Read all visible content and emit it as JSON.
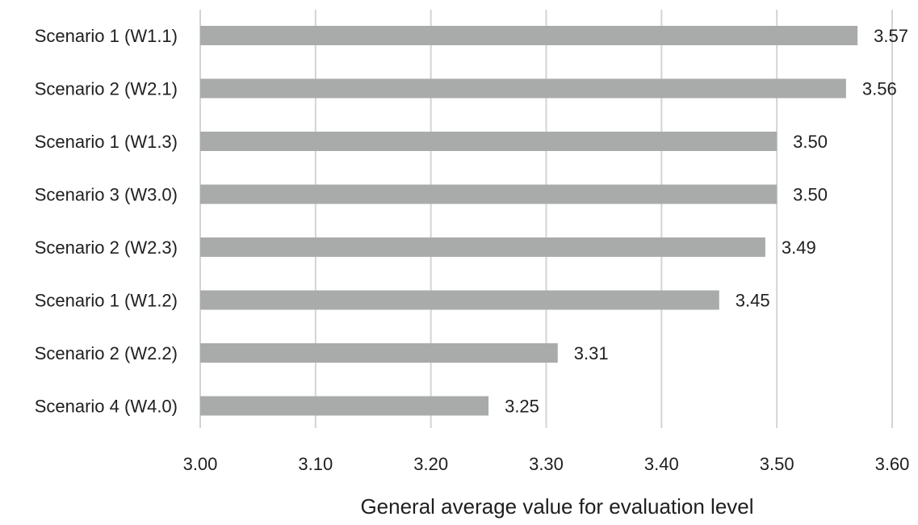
{
  "chart_data": {
    "type": "bar",
    "orientation": "horizontal",
    "title": "",
    "xlabel": "General average value for evaluation level",
    "ylabel": "",
    "categories": [
      "Scenario 1 (W1.1)",
      "Scenario 2 (W2.1)",
      "Scenario 1 (W1.3)",
      "Scenario 3 (W3.0)",
      "Scenario 2 (W2.3)",
      "Scenario 1 (W1.2)",
      "Scenario 2 (W2.2)",
      "Scenario 4 (W4.0)"
    ],
    "values": [
      3.57,
      3.56,
      3.5,
      3.5,
      3.49,
      3.45,
      3.31,
      3.25
    ],
    "value_labels": [
      "3.57",
      "3.56",
      "3.50",
      "3.50",
      "3.49",
      "3.45",
      "3.31",
      "3.25"
    ],
    "xlim": [
      3.0,
      3.6
    ],
    "xticks": [
      3.0,
      3.1,
      3.2,
      3.3,
      3.4,
      3.5,
      3.6
    ],
    "xtick_labels": [
      "3.00",
      "3.10",
      "3.20",
      "3.30",
      "3.40",
      "3.50",
      "3.60"
    ],
    "grid": "vertical",
    "legend": "none",
    "bar_color": "#a9abab",
    "grid_color": "#d4d4d4"
  }
}
